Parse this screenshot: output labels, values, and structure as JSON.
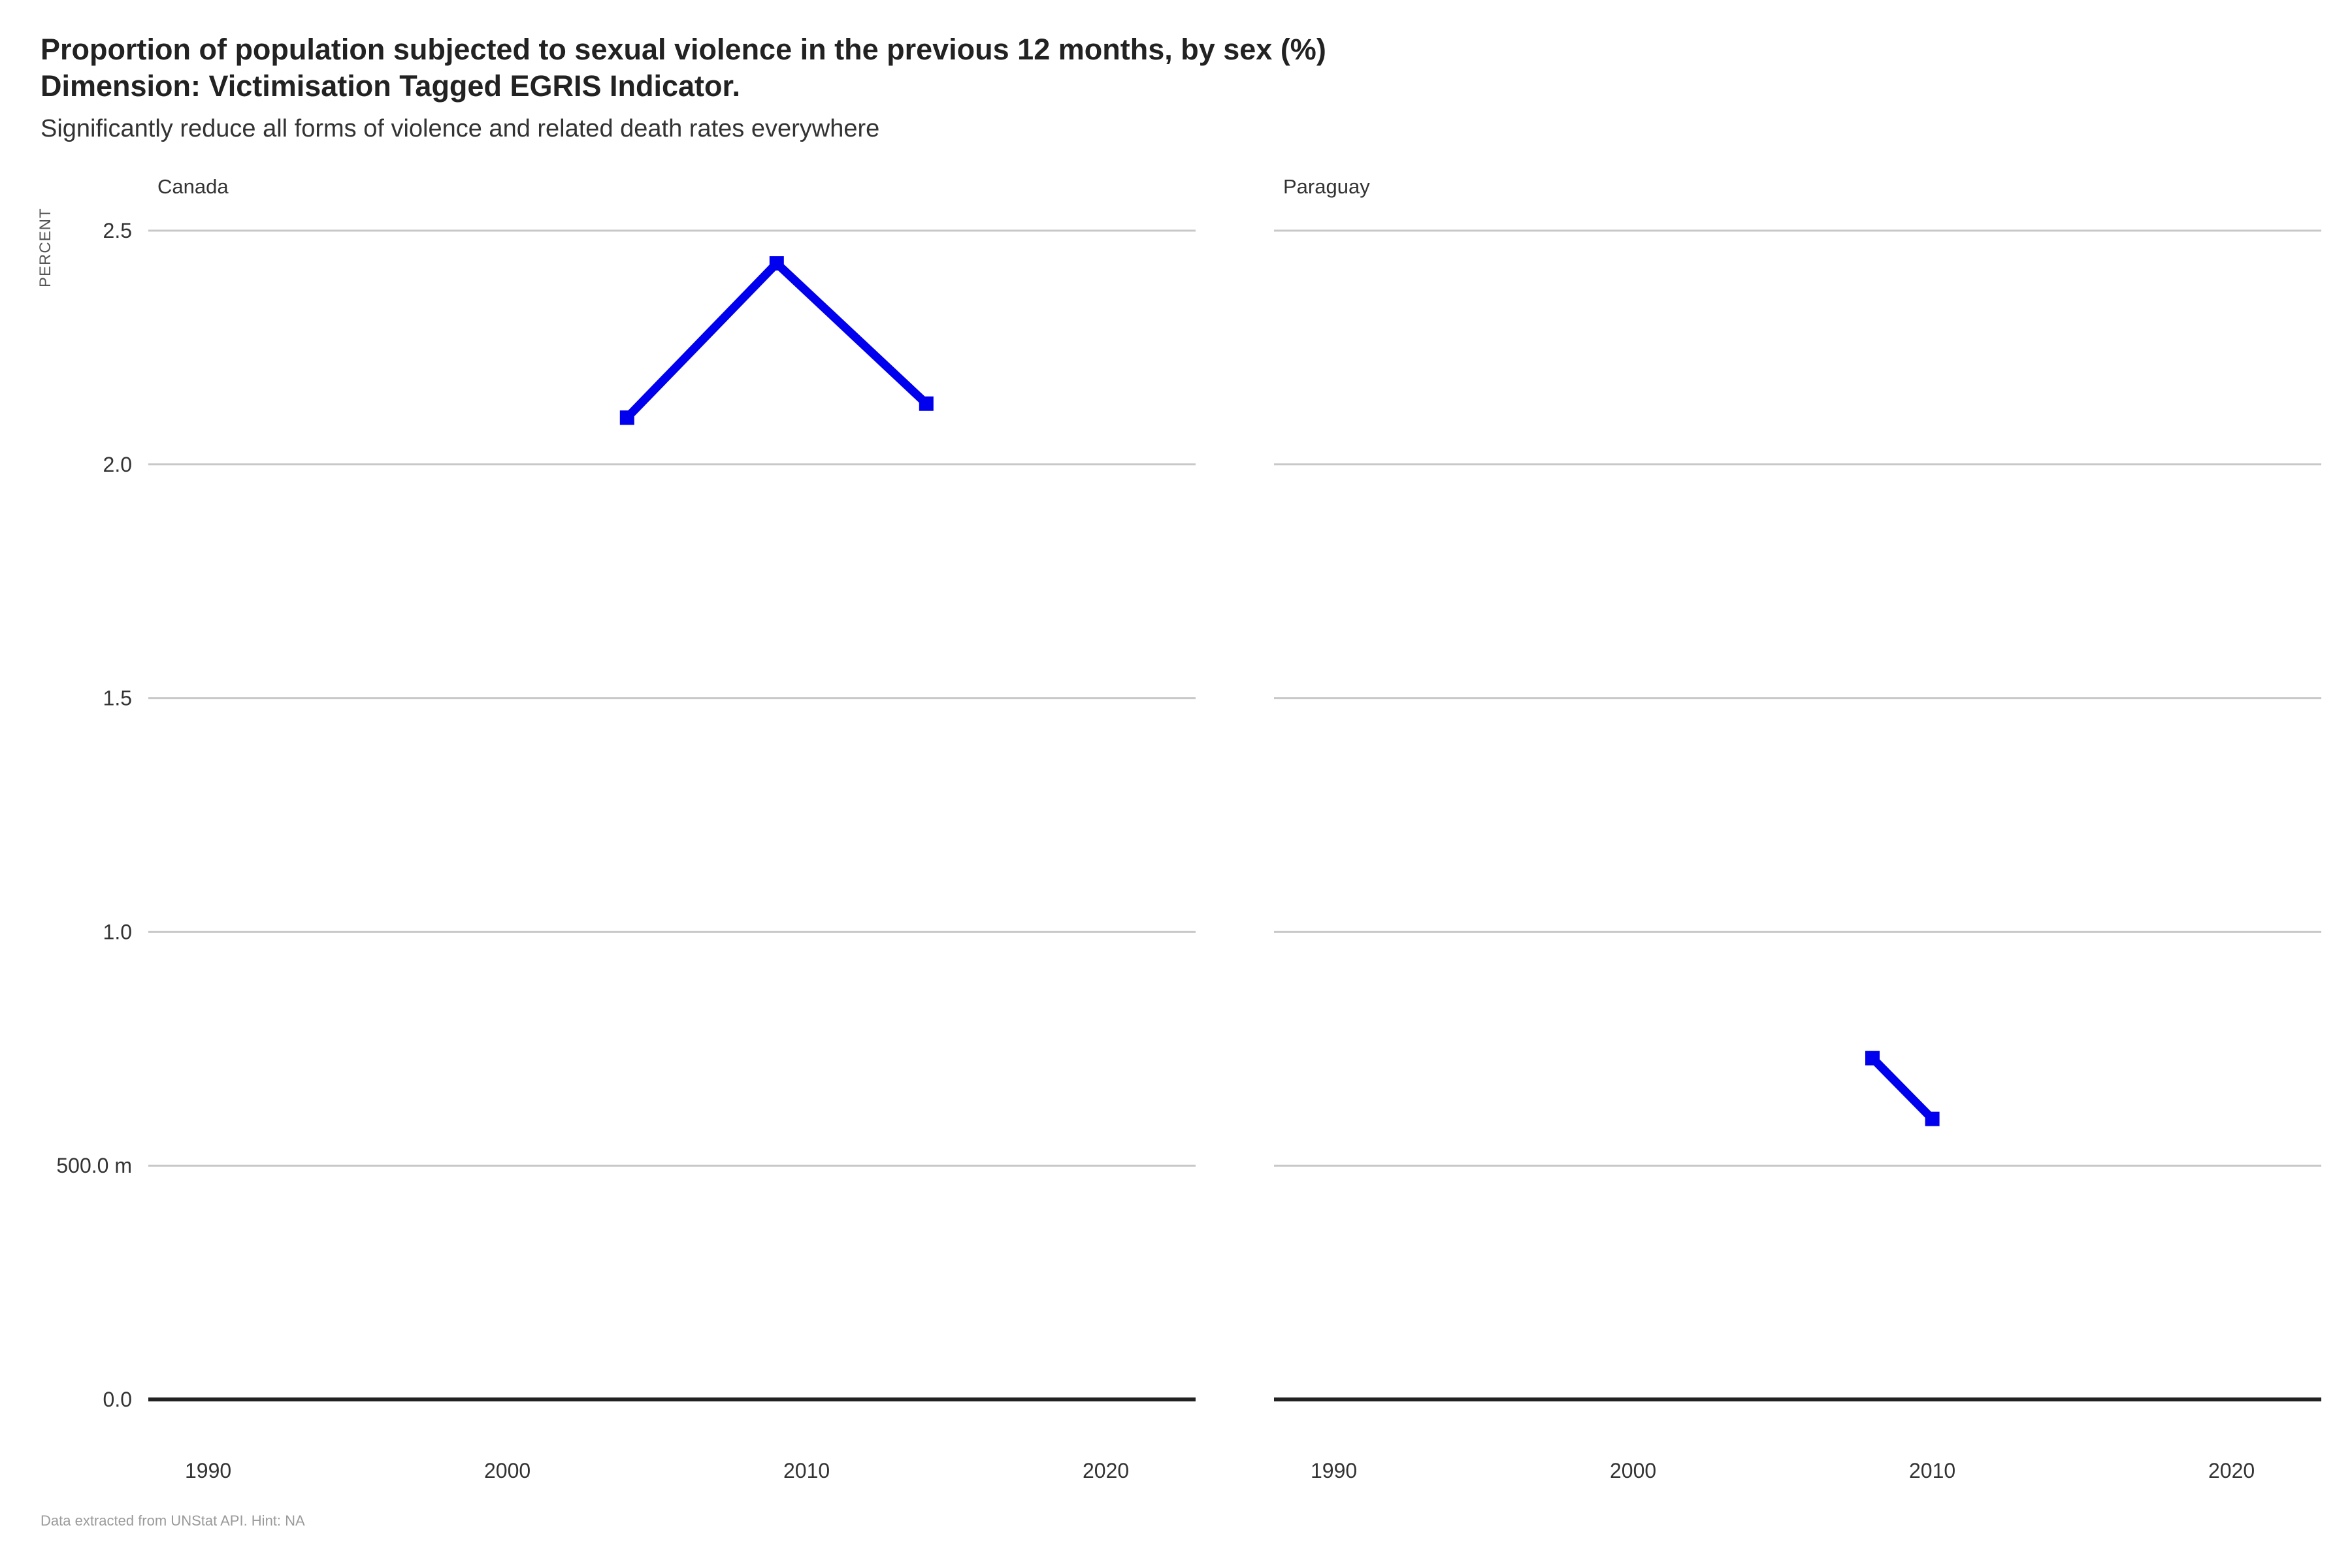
{
  "title_line1": "Proportion of population subjected to sexual violence in the previous 12 months, by sex (%)",
  "title_line2": "Dimension: Victimisation Tagged EGRIS Indicator.",
  "subtitle": "Significantly reduce all forms of violence and related death rates everywhere",
  "caption": "Data extracted from UNStat API. Hint: NA",
  "colors": {
    "line": "#0000ee",
    "grid": "#c8c8c8",
    "baseline": "#222222"
  },
  "chart_data": {
    "type": "line",
    "ylabel": "PERCENT",
    "ylim": [
      0,
      2.5
    ],
    "xlim": [
      1988,
      2023
    ],
    "y_ticks": [
      0,
      0.5,
      1.0,
      1.5,
      2.0,
      2.5
    ],
    "y_tick_labels": [
      "0.0",
      "500.0 m",
      "1.0",
      "1.5",
      "2.0",
      "2.5"
    ],
    "x_ticks": [
      1990,
      2000,
      2010,
      2020
    ],
    "x_tick_labels": [
      "1990",
      "2000",
      "2010",
      "2020"
    ],
    "grid": true,
    "panels": [
      {
        "name": "Canada",
        "series": [
          {
            "x": [
              2004,
              2009,
              2014
            ],
            "y": [
              2.1,
              2.43,
              2.13
            ]
          }
        ]
      },
      {
        "name": "Paraguay",
        "series": [
          {
            "x": [
              2008,
              2010
            ],
            "y": [
              0.73,
              0.6
            ]
          }
        ]
      }
    ]
  }
}
